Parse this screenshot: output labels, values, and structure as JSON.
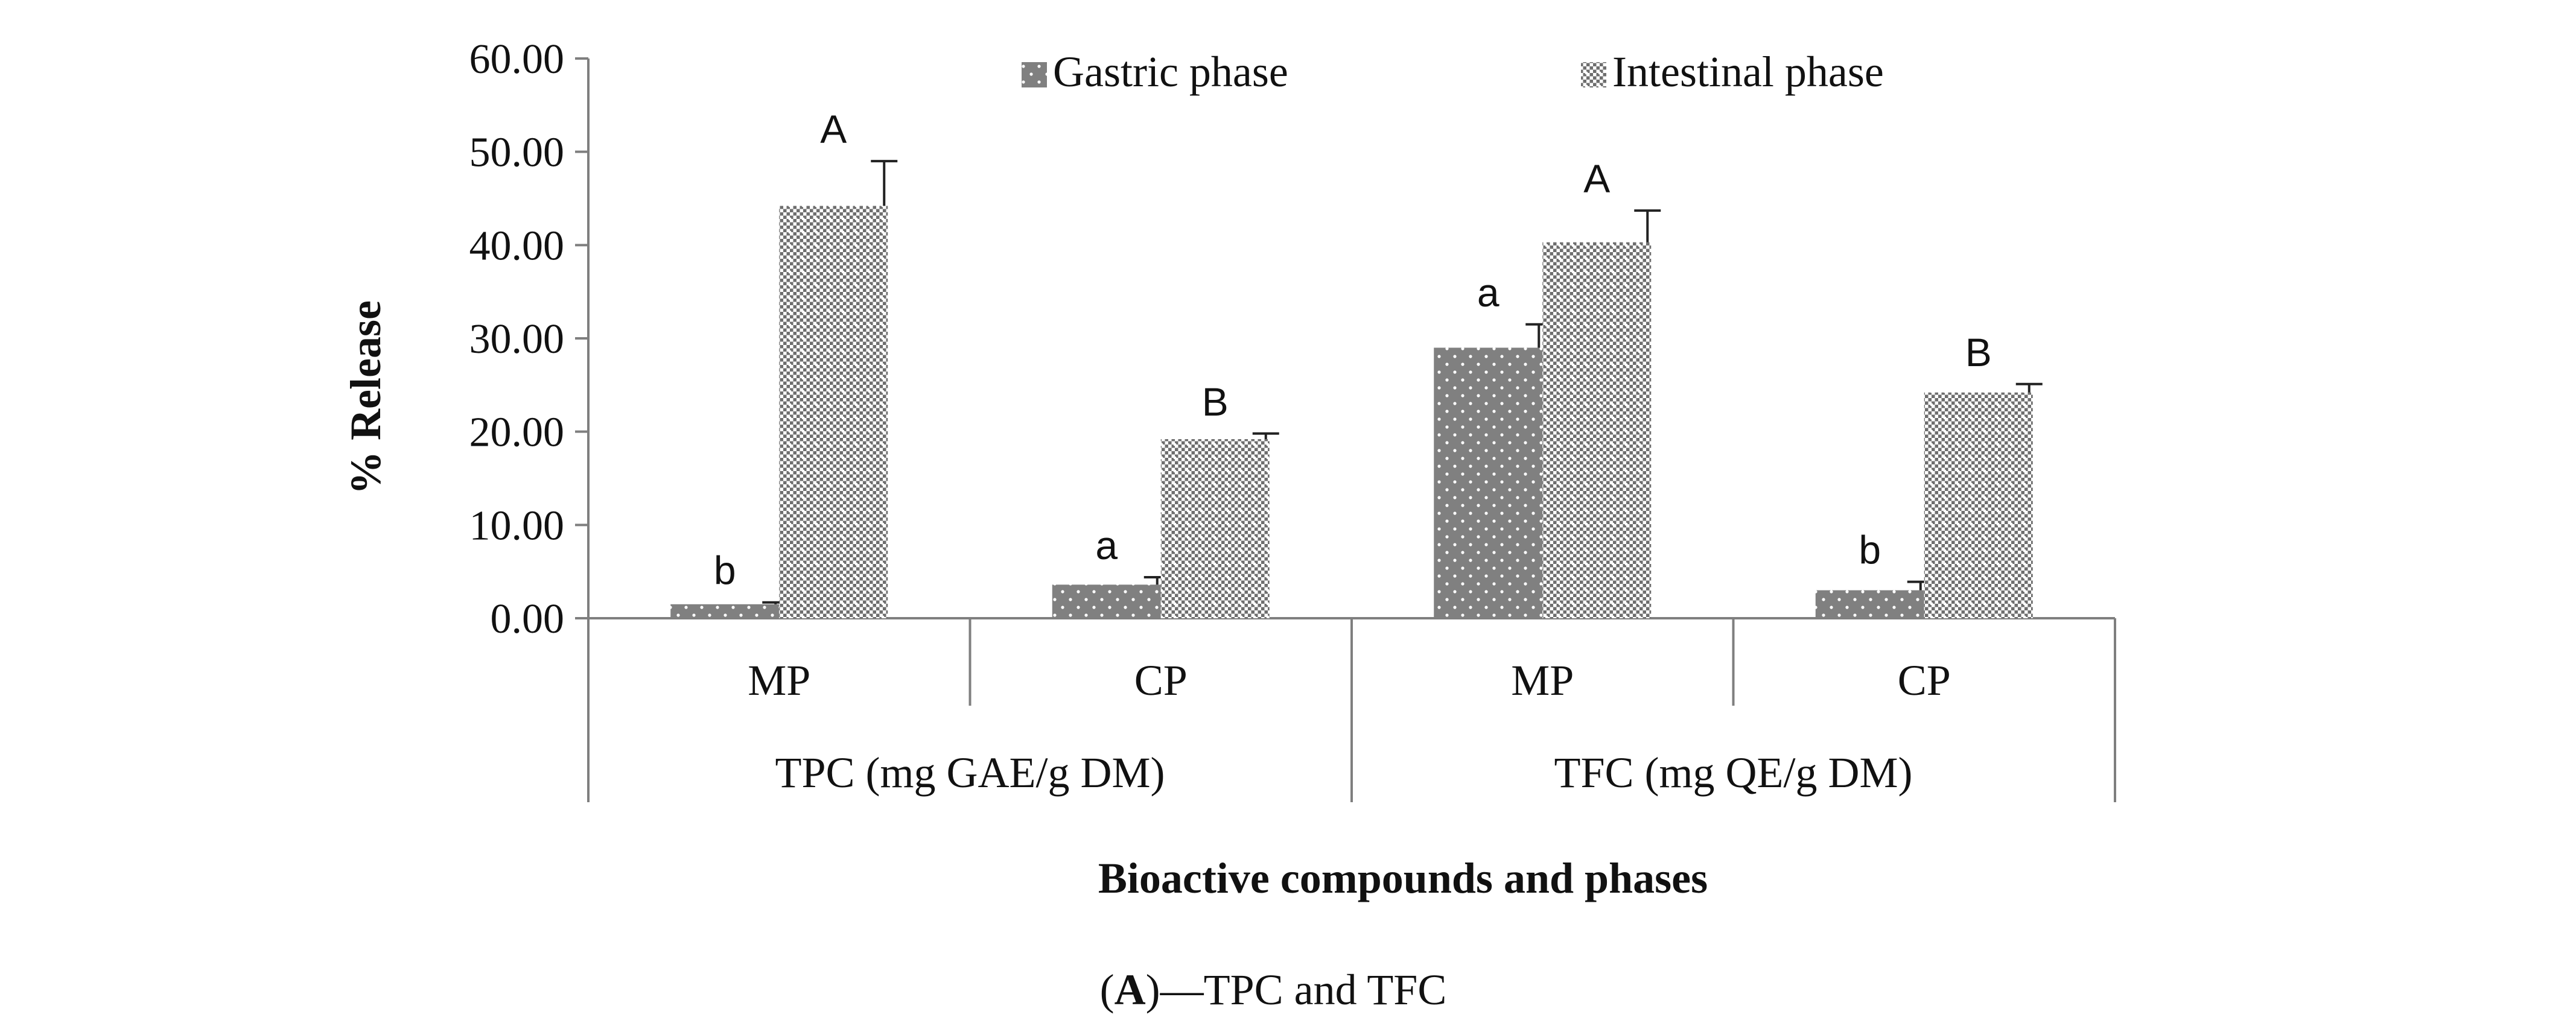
{
  "chart_data": {
    "type": "bar",
    "ylabel": "% Release",
    "xlabel": "Bioactive compounds and phases",
    "caption_bold": "A",
    "caption_rest": "—TPC and TFC",
    "caption_open": "(",
    "caption_close": ")",
    "ylim": [
      0,
      60
    ],
    "ytick_values": [
      0,
      10,
      20,
      30,
      40,
      50,
      60
    ],
    "ytick_labels": [
      "0.00",
      "10.00",
      "20.00",
      "30.00",
      "40.00",
      "50.00",
      "60.00"
    ],
    "categories": [
      "MP",
      "CP",
      "MP",
      "CP"
    ],
    "groups": [
      {
        "label": "TPC (mg GAE/g DM)",
        "span": 2
      },
      {
        "label": "TFC (mg QE/g DM)",
        "span": 2
      }
    ],
    "series": [
      {
        "name": "Gastric phase",
        "pattern": "dots",
        "color": "#808080",
        "values": [
          1.5,
          3.6,
          29.0,
          3.0
        ],
        "errors": [
          0.2,
          0.8,
          2.5,
          0.9
        ],
        "letters": [
          "b",
          "a",
          "a",
          "b"
        ]
      },
      {
        "name": "Intestinal phase",
        "pattern": "checker",
        "color": "#808080",
        "values": [
          44.2,
          19.2,
          40.3,
          24.2
        ],
        "errors": [
          4.8,
          0.6,
          3.4,
          0.9
        ],
        "letters": [
          "A",
          "B",
          "A",
          "B"
        ]
      }
    ]
  }
}
